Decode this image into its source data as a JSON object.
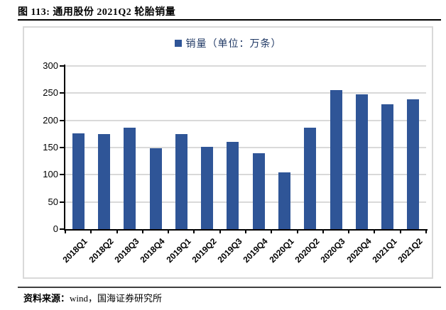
{
  "page": {
    "title": "图 113: 通用股份 2021Q2 轮胎销量",
    "source_prefix": "资料来源：",
    "source_text": "wind，国海证券研究所"
  },
  "legend": {
    "label": "销量（单位：万条）"
  },
  "colors": {
    "bar": "#2F5597",
    "grid": "#D9D9D9",
    "axis": "#000000",
    "legend_text": "#1F3864",
    "card_border": "#D9D9D9",
    "bottom_rule": "#3F3F3F"
  },
  "chart_data": {
    "type": "bar",
    "title": "销量（单位：万条）",
    "categories": [
      "2018Q1",
      "2018Q2",
      "2018Q3",
      "2018Q4",
      "2019Q1",
      "2019Q2",
      "2019Q3",
      "2019Q4",
      "2020Q1",
      "2020Q2",
      "2020Q3",
      "2020Q4",
      "2021Q1",
      "2021Q2"
    ],
    "values": [
      176,
      175,
      187,
      149,
      175,
      151,
      161,
      139,
      104,
      187,
      256,
      248,
      230,
      239
    ],
    "xlabel": "",
    "ylabel": "",
    "ylim": [
      0,
      300
    ],
    "yticks": [
      0,
      50,
      100,
      150,
      200,
      250,
      300
    ],
    "grid": true,
    "legend_position": "top-center"
  }
}
